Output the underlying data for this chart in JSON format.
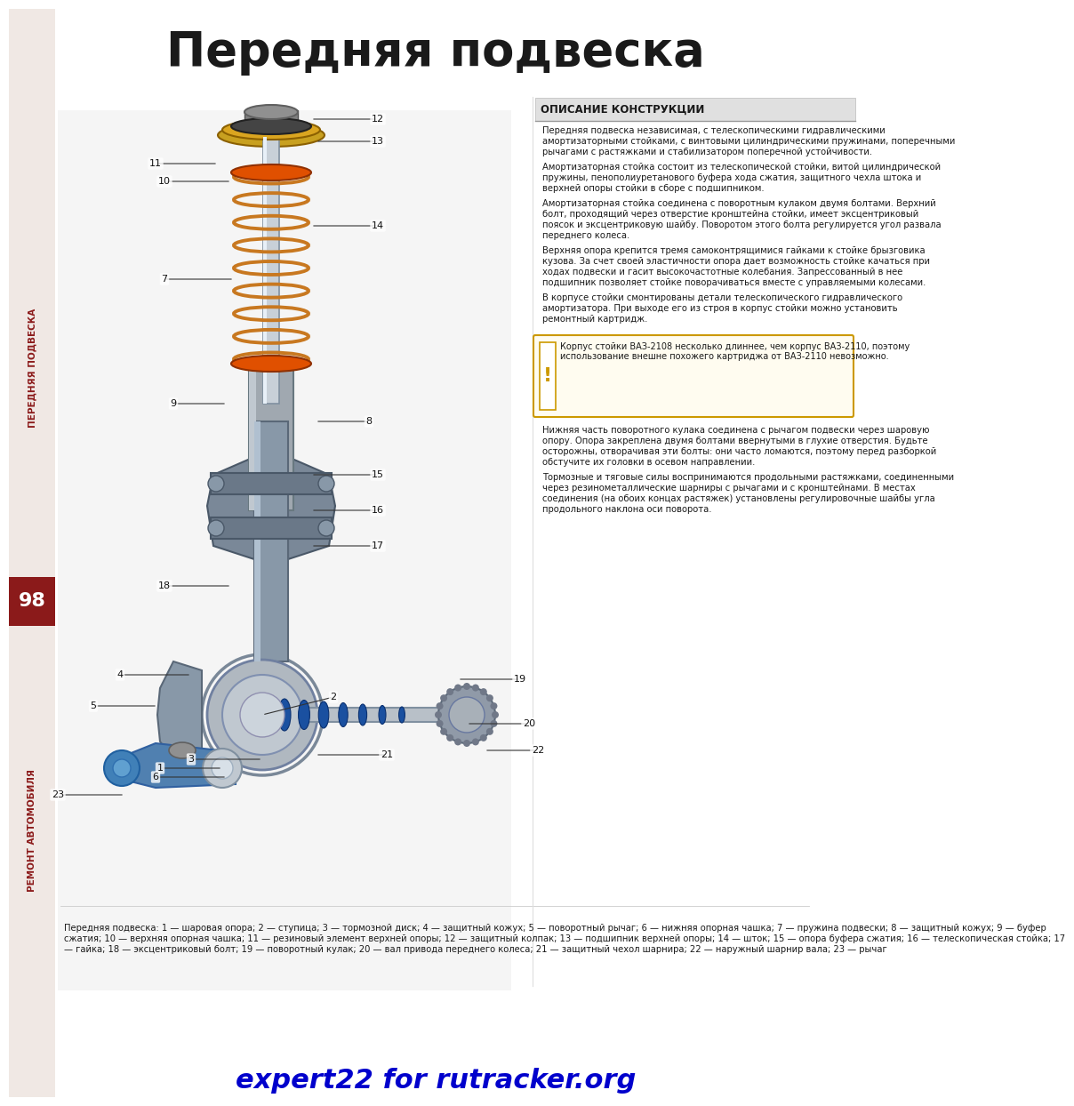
{
  "title": "Передняя подвеска",
  "title_fontsize": 38,
  "title_color": "#1a1a1a",
  "bg_color": "#ffffff",
  "sidebar_color": "#f0e8e4",
  "sidebar_red_color": "#8b1a1a",
  "sidebar_text_top": "ПЕРЕДНЯЯ ПОДВЕСКА",
  "sidebar_text_bottom": "РЕМОНТ АВТОМОБИЛЯ",
  "sidebar_number": "98",
  "section_title": "ОПИСАНИЕ КОНСТРУКЦИИ",
  "section_title_color": "#1a1a1a",
  "description_text": "Передняя подвеска независимая, с телескопическими гидравлическими амортизаторными стойками, с винтовыми цилиндрическими пружинами, поперечными рычагами с растяжками и стабилизатором поперечной устойчивости.\nАмортизаторная стойка состоит из телескопической стойки, витой цилиндрической пружины, пенополиуретанового буфера хода сжатия, защитного чехла штока и верхней опоры стойки в сборе с подшипником.\nАмортизаторная стойка соединена с поворотным кулаком двумя болтами. Верхний болт, проходящий через отверстие кронштейна стойки, имеет эксцентриковый поясок и эксцентриковую шайбу. Поворотом этого болта регулируется угол развала переднего колеса.\nВерхняя опора крепится тремя самоконтрящимися гайками к стойке брызговика кузова. За счет своей эластичности опора дает возможность стойке качаться при ходах подвески и гасит высокочастотные колебания. Запрессованный в нее подшипник позволяет стойке поворачиваться вместе с управляемыми колесами.\nВ корпусе стойки смонтированы детали телескопического гидравлического амортизатора. При выходе его из строя в корпус стойки можно установить ремонтный картридж.",
  "warning_text": "Корпус стойки ВАЗ-2108 несколько длиннее, чем корпус ВАЗ-2110, поэтому использование внешне похожего картриджа от ВАЗ-2110 невозможно.",
  "warning_bg": "#fff9e6",
  "warning_border": "#cc8800",
  "bottom_description": "Нижняя часть поворотного кулака соединена с рычагом подвески через шаровую опору. Опора закреплена двумя болтами ввернутыми в глухие отверстия. Будьте осторожны, отворачивая эти болты: они часто ломаются, поэтому перед разборкой обстучите их головки в осевом направлении.\nТормозные и тяговые силы воспринимаются продольными растяжками, соединенными через резинометаллические шарниры с рычагами и с кронштейнами. В местах соединения (на обоих концах растяжек) установлены регулировочные шайбы угла продольного наклона оси поворота.",
  "caption_text": "Передняя подвеска: 1 — шаровая опора; 2 — ступица; 3 — тормозной диск; 4 — защитный кожух; 5 — поворотный рычаг; 6 — нижняя опорная чашка; 7 — пружина подвески; 8 — защитный кожух; 9 — буфер сжатия; 10 — верхняя опорная чашка; 11 — резиновый элемент верхней опоры; 12 — защитный колпак; 13 — подшипник верхней опоры; 14 — шток; 15 — опора буфера сжатия; 16 — телескопическая стойка; 17 — гайка; 18 — эксцентриковый болт; 19 — поворотный кулак; 20 — вал привода переднего колеса; 21 — защитный чехол шарнира; 22 — наружный шарнир вала; 23 — рычаг",
  "watermark_text": "expert22 for rutracker.org",
  "watermark_color": "#0000cc"
}
